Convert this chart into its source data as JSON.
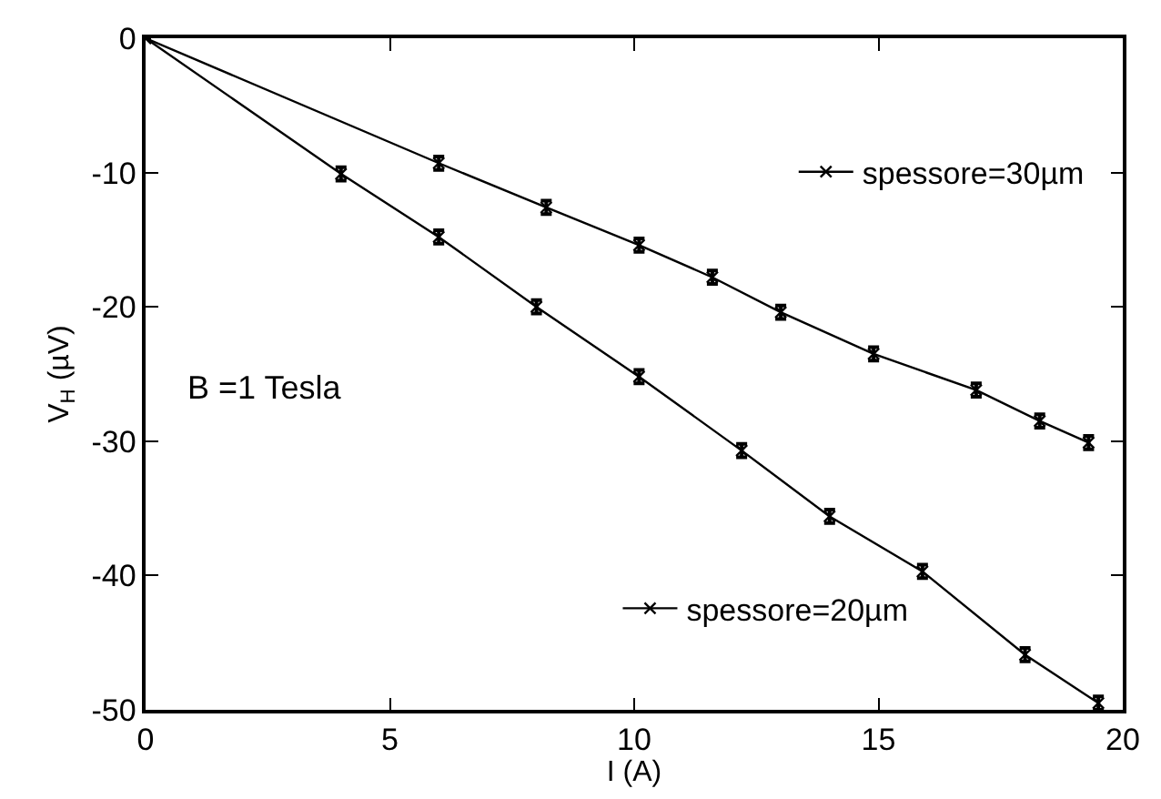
{
  "chart_data": {
    "type": "line",
    "xlabel": "I (A)",
    "ylabel": "V$_{H}$ (µV)",
    "xlim": [
      0,
      20
    ],
    "xticks": [
      0,
      5,
      10,
      15,
      20
    ],
    "ylim": [
      -50,
      0
    ],
    "yticks": [
      -50,
      -40,
      -30,
      -20,
      -10,
      0
    ],
    "legend": "right",
    "marker": "cross",
    "line_style": "solid",
    "annotations": [
      "B =1 Tesla"
    ],
    "series": [
      {
        "name": "spessore=30µm",
        "color": "#000000",
        "x": [
          0,
          6.0,
          8.2,
          10.1,
          11.6,
          13.0,
          14.9,
          17.0,
          18.3,
          19.3
        ],
        "values": [
          0,
          -9.3,
          -12.6,
          -15.4,
          -17.8,
          -20.4,
          -23.5,
          -26.2,
          -28.5,
          -30.1
        ],
        "errors": [
          null,
          0.5,
          0.5,
          0.5,
          0.5,
          0.5,
          0.5,
          0.5,
          0.5,
          0.5
        ]
      },
      {
        "name": "spessore=20µm",
        "color": "#000000",
        "x": [
          0,
          4.0,
          6.0,
          8.0,
          10.1,
          12.2,
          14.0,
          15.9,
          18.0,
          19.5
        ],
        "values": [
          0,
          -10.1,
          -14.8,
          -20.0,
          -25.2,
          -30.7,
          -35.6,
          -39.7,
          -45.9,
          -49.5
        ],
        "errors": [
          null,
          0.5,
          0.5,
          0.5,
          0.5,
          0.5,
          0.5,
          0.5,
          0.5,
          0.5
        ]
      }
    ]
  }
}
